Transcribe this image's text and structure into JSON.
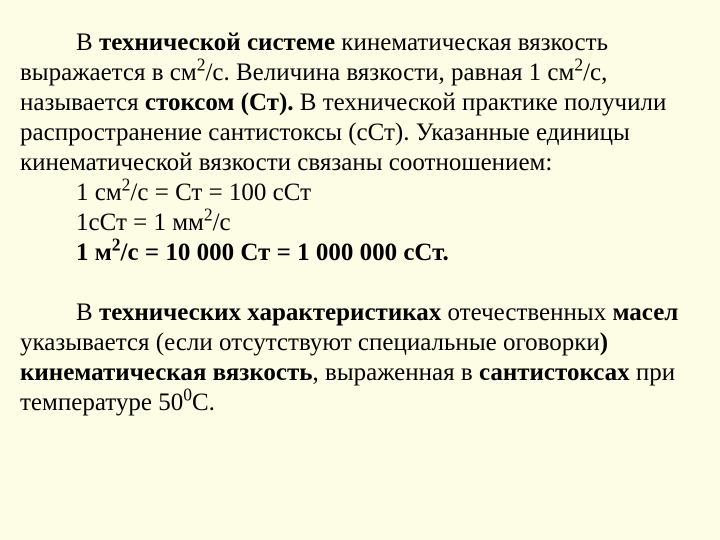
{
  "para1": {
    "t1": "В ",
    "t2": "технической системе",
    "t3": " кинематическая вязкость выражается в см",
    "sup1": "2",
    "t4": "/с. Величина вязкости, равная 1 см",
    "sup2": "2",
    "t5": "/с, называется ",
    "t6": "стоксом (Ст).",
    "t7": " В технической практике получили распространение сантистоксы (сСт). Указанные единицы кинематической вязкости связаны соотношением:"
  },
  "formula1": {
    "t1": "1 см",
    "sup": "2",
    "t2": "/с = Ст = 100 сСт"
  },
  "formula2": {
    "t1": "1сСт = 1 мм",
    "sup": "2",
    "t2": "/с"
  },
  "formula3": {
    "t1": "1 м",
    "sup": "2",
    "t2": "/с = 10 000 Ст = 1 000 000 сСт."
  },
  "para2": {
    "t1": "В",
    "t2": " технических характеристиках ",
    "t3": "отечественных ",
    "t4": "масел",
    "t5": " указывается (если отсутствуют специальные оговорки",
    "t6": ") кинематическая вязкость",
    "t7": ", выраженная в ",
    "t8": "сантистоксах",
    "t9": " при температуре 50",
    "sup": "0",
    "t10": "С."
  }
}
